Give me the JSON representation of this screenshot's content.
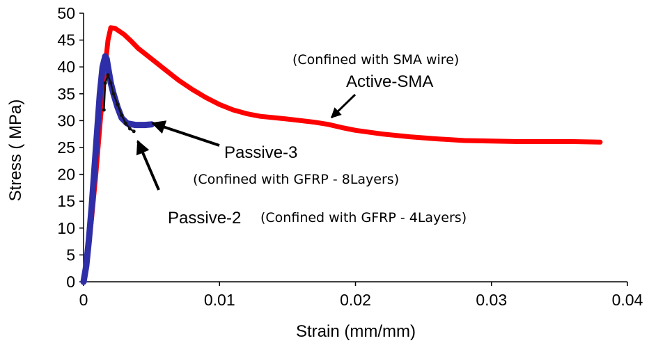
{
  "chart_data": {
    "type": "line",
    "xlabel": "Strain (mm/mm)",
    "ylabel": "Stress ( MPa)",
    "xlim": [
      0,
      0.04
    ],
    "ylim": [
      0,
      50
    ],
    "x_ticks": [
      0,
      0.01,
      0.02,
      0.03,
      0.04
    ],
    "x_tick_labels": [
      "0",
      "0.01",
      "0.02",
      "0.03",
      "0.04"
    ],
    "y_ticks": [
      0,
      5,
      10,
      15,
      20,
      25,
      30,
      35,
      40,
      45,
      50
    ],
    "y_tick_labels": [
      "0",
      "5",
      "10",
      "15",
      "20",
      "25",
      "30",
      "35",
      "40",
      "45",
      "50"
    ],
    "grid": false,
    "series": [
      {
        "name": "Active-SMA",
        "note": "(Confined with SMA wire)",
        "color": "#ff0000",
        "x": [
          0,
          0.0003,
          0.0006,
          0.0009,
          0.0012,
          0.0015,
          0.0018,
          0.002,
          0.0023,
          0.0026,
          0.003,
          0.0035,
          0.004,
          0.005,
          0.006,
          0.007,
          0.008,
          0.009,
          0.01,
          0.011,
          0.012,
          0.013,
          0.015,
          0.017,
          0.018,
          0.019,
          0.02,
          0.022,
          0.024,
          0.026,
          0.028,
          0.03,
          0.032,
          0.034,
          0.036,
          0.038
        ],
        "y": [
          0,
          5,
          12,
          20,
          29,
          38,
          45,
          47.3,
          47.2,
          46.7,
          46,
          44.8,
          43.5,
          41.5,
          39.5,
          37.5,
          35.8,
          34.3,
          33,
          32,
          31.3,
          30.8,
          30.3,
          29.7,
          29.3,
          28.7,
          28.2,
          27.5,
          27,
          26.6,
          26.3,
          26.2,
          26.1,
          26.1,
          26.1,
          26
        ]
      },
      {
        "name": "Passive-3",
        "note": "(Confined with GFRP - 8Layers)",
        "color": "#2e2ea8",
        "x": [
          0,
          0.0002,
          0.0004,
          0.0006,
          0.0008,
          0.001,
          0.0012,
          0.0014,
          0.0016,
          0.0017,
          0.0018,
          0.002,
          0.0022,
          0.0025,
          0.0028,
          0.0032,
          0.0038,
          0.0045,
          0.005
        ],
        "y": [
          0,
          3,
          8,
          14,
          21,
          28,
          35,
          40,
          42,
          41.5,
          40,
          37,
          35,
          32.5,
          30.5,
          29.5,
          29.2,
          29.2,
          29.3
        ]
      },
      {
        "name": "Passive-2",
        "note": "(Confined with GFRP - 4Layers)",
        "color": "#111111",
        "x": [
          0.0015,
          0.0016,
          0.0018,
          0.002,
          0.0022,
          0.0025,
          0.0028,
          0.0031,
          0.0034,
          0.0037
        ],
        "y": [
          32,
          37,
          38.5,
          37,
          35,
          33,
          31,
          29.5,
          28.5,
          28
        ]
      }
    ],
    "annotations": [
      {
        "text": "Active-SMA",
        "series": "Active-SMA"
      },
      {
        "text": "Passive-3",
        "series": "Passive-3"
      },
      {
        "text": "Passive-2",
        "series": "Passive-2"
      }
    ]
  }
}
